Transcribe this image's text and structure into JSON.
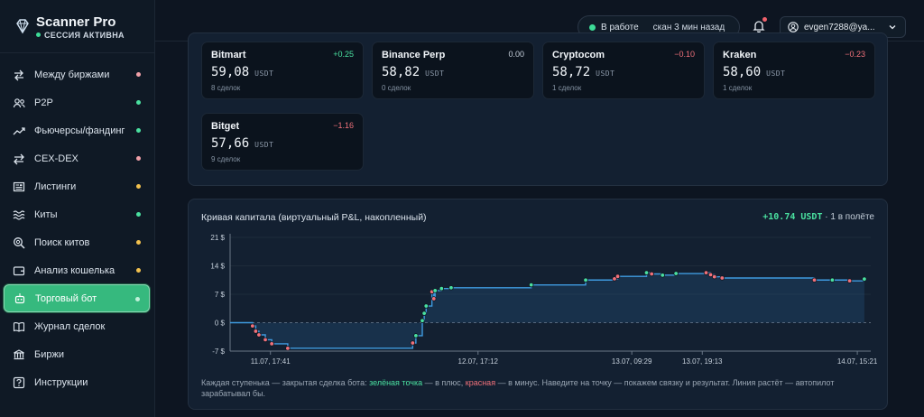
{
  "brand": {
    "title": "Scanner Pro",
    "status": "СЕССИЯ АКТИВНА"
  },
  "nav": [
    {
      "label": "Между биржами",
      "icon": "arrows-swap-icon",
      "dot": "#f0a0a8"
    },
    {
      "label": "P2P",
      "icon": "users-icon",
      "dot": "#4ae0a0"
    },
    {
      "label": "Фьючерсы/фандинг",
      "icon": "trend-up-icon",
      "dot": "#4ae0a0"
    },
    {
      "label": "CEX-DEX",
      "icon": "exchange-icon",
      "dot": "#f0a0a8"
    },
    {
      "label": "Листинги",
      "icon": "newspaper-icon",
      "dot": "#f2c14e"
    },
    {
      "label": "Киты",
      "icon": "waves-icon",
      "dot": "#4ae0a0"
    },
    {
      "label": "Поиск китов",
      "icon": "search-radar-icon",
      "dot": "#f2c14e"
    },
    {
      "label": "Анализ кошелька",
      "icon": "wallet-icon",
      "dot": "#f2c14e"
    },
    {
      "label": "Торговый бот",
      "icon": "robot-icon",
      "dot": "#bff0d9",
      "active": true
    },
    {
      "label": "Журнал сделок",
      "icon": "book-icon",
      "dot": ""
    },
    {
      "label": "Биржи",
      "icon": "bank-icon",
      "dot": ""
    },
    {
      "label": "Инструкции",
      "icon": "help-icon",
      "dot": ""
    }
  ],
  "header": {
    "status_label": "В работе",
    "scan_label": "скан 3 мин назад",
    "user": "evgen7288@ya..."
  },
  "exchanges": [
    {
      "name": "Bitmart",
      "change": "+0.25",
      "price": "59,08",
      "unit": "USDT",
      "deals": "8 сделок",
      "tone": "pos"
    },
    {
      "name": "Binance Perp",
      "change": "0.00",
      "price": "58,82",
      "unit": "USDT",
      "deals": "0 сделок",
      "tone": "neu"
    },
    {
      "name": "Cryptocom",
      "change": "−0.10",
      "price": "58,72",
      "unit": "USDT",
      "deals": "1 сделок",
      "tone": "neg"
    },
    {
      "name": "Kraken",
      "change": "−0.23",
      "price": "58,60",
      "unit": "USDT",
      "deals": "1 сделок",
      "tone": "neg"
    },
    {
      "name": "Bitget",
      "change": "−1.16",
      "price": "57,66",
      "unit": "USDT",
      "deals": "9 сделок",
      "tone": "neg"
    }
  ],
  "colors": {
    "pos": "#4ae0a0",
    "neg": "#f0717a",
    "neu": "#c5cfda",
    "line": "#3f9be0",
    "accent": "#36b97e"
  },
  "equity": {
    "title": "Кривая капитала (виртуальный P&L, накопленный)",
    "pnl": "+10.74 USDT",
    "in_flight": "· 1 в полёте",
    "note_before": "Каждая ступенька — закрытая сделка бота: ",
    "note_green": "зелёная точка",
    "note_mid": " — в плюс, ",
    "note_red": "красная",
    "note_after": " — в минус. Наведите на точку — покажем связку и результат. Линия растёт — автопилот зарабатывал бы."
  },
  "chart_data": {
    "type": "line",
    "title": "Кривая капитала (виртуальный P&L, накопленный)",
    "yticks": [
      "21 $",
      "14 $",
      "7 $",
      "0 $",
      "-7 $"
    ],
    "ytick_values": [
      21,
      14,
      7,
      0,
      -7
    ],
    "ylim": [
      -7,
      21
    ],
    "xticks": [
      "11.07, 17:41",
      "12.07, 17:12",
      "13.07, 09:29",
      "13.07, 19:13",
      "14.07, 15:21"
    ],
    "xtick_values": [
      0.063,
      0.387,
      0.627,
      0.737,
      0.979
    ],
    "grid": true,
    "step_points": [
      {
        "t": 0.0,
        "v": 0.0
      },
      {
        "t": 0.03,
        "v": 0.0
      },
      {
        "t": 0.035,
        "v": -0.8
      },
      {
        "t": 0.04,
        "v": -2.1
      },
      {
        "t": 0.045,
        "v": -3.0
      },
      {
        "t": 0.055,
        "v": -4.2
      },
      {
        "t": 0.065,
        "v": -5.2
      },
      {
        "t": 0.09,
        "v": -6.3
      },
      {
        "t": 0.285,
        "v": -5.0
      },
      {
        "t": 0.29,
        "v": -3.2
      },
      {
        "t": 0.3,
        "v": 0.5
      },
      {
        "t": 0.303,
        "v": 2.3
      },
      {
        "t": 0.306,
        "v": 4.1
      },
      {
        "t": 0.315,
        "v": 7.6
      },
      {
        "t": 0.318,
        "v": 5.9
      },
      {
        "t": 0.32,
        "v": 7.9
      },
      {
        "t": 0.33,
        "v": 8.4
      },
      {
        "t": 0.345,
        "v": 8.6
      },
      {
        "t": 0.47,
        "v": 9.3
      },
      {
        "t": 0.555,
        "v": 10.5
      },
      {
        "t": 0.6,
        "v": 10.8
      },
      {
        "t": 0.605,
        "v": 11.4
      },
      {
        "t": 0.65,
        "v": 12.3
      },
      {
        "t": 0.658,
        "v": 12.0
      },
      {
        "t": 0.675,
        "v": 11.7
      },
      {
        "t": 0.696,
        "v": 12.1
      },
      {
        "t": 0.743,
        "v": 12.3
      },
      {
        "t": 0.75,
        "v": 11.8
      },
      {
        "t": 0.756,
        "v": 11.3
      },
      {
        "t": 0.768,
        "v": 11.0
      },
      {
        "t": 0.912,
        "v": 10.5
      },
      {
        "t": 0.94,
        "v": 10.5
      },
      {
        "t": 0.967,
        "v": 10.3
      },
      {
        "t": 0.99,
        "v": 10.74
      }
    ],
    "point_colors": [
      "none",
      "none",
      "neg",
      "neg",
      "neg",
      "neg",
      "neg",
      "neg",
      "neg",
      "pos",
      "pos",
      "pos",
      "pos",
      "neg",
      "neg",
      "pos",
      "pos",
      "pos",
      "pos",
      "pos",
      "neg",
      "neg",
      "pos",
      "neg",
      "pos",
      "pos",
      "neg",
      "neg",
      "neg",
      "neg",
      "neg",
      "pos",
      "neg",
      "pos"
    ]
  }
}
